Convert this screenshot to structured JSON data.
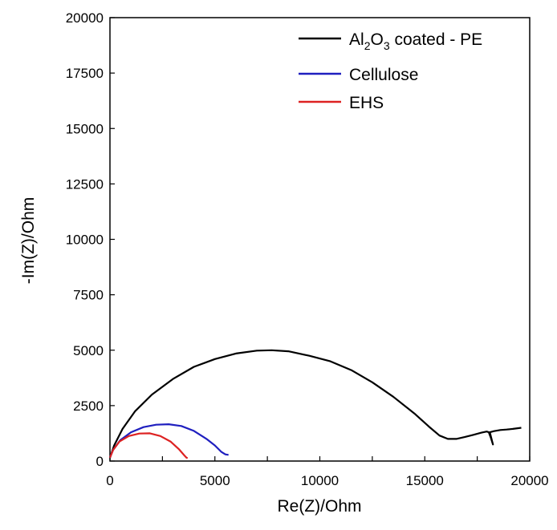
{
  "chart_data": {
    "type": "line",
    "xlabel": "Re(Z)/Ohm",
    "ylabel": "-Im(Z)/Ohm",
    "xlim": [
      0,
      20000
    ],
    "ylim": [
      0,
      20000
    ],
    "xticks": [
      0,
      2500,
      5000,
      7500,
      10000,
      12500,
      15000,
      17500,
      20000
    ],
    "xtick_labels": [
      "0",
      "5000",
      "10000",
      "15000",
      "20000"
    ],
    "xtick_label_values": [
      0,
      5000,
      10000,
      15000,
      20000
    ],
    "yticks": [
      0,
      2500,
      5000,
      7500,
      10000,
      12500,
      15000,
      17500,
      20000
    ],
    "ytick_labels": [
      "0",
      "2500",
      "5000",
      "7500",
      "10000",
      "12500",
      "15000",
      "17500",
      "20000"
    ],
    "grid": false,
    "legend_position": "top-right",
    "series": [
      {
        "name_parts": [
          "Al",
          "2",
          "O",
          "3",
          " coated - PE"
        ],
        "color": "#000000",
        "x": [
          0,
          200,
          600,
          1200,
          2000,
          3000,
          4000,
          5000,
          6000,
          7000,
          7700,
          8500,
          9500,
          10500,
          11500,
          12500,
          13500,
          14500,
          15200,
          15700,
          16100,
          16500,
          16900,
          17300,
          17700,
          17950,
          18050,
          18150,
          18250,
          18100,
          18300,
          18600,
          18900,
          19200,
          19600
        ],
        "y": [
          150,
          700,
          1450,
          2250,
          3000,
          3700,
          4250,
          4600,
          4850,
          4980,
          5000,
          4950,
          4750,
          4500,
          4100,
          3550,
          2900,
          2150,
          1550,
          1150,
          1000,
          1000,
          1080,
          1180,
          1280,
          1330,
          1300,
          1050,
          750,
          1300,
          1350,
          1400,
          1420,
          1450,
          1500
        ]
      },
      {
        "name": "Cellulose",
        "color": "#1f1fbf",
        "x": [
          0,
          150,
          500,
          1000,
          1600,
          2200,
          2800,
          3400,
          4000,
          4600,
          5000,
          5300,
          5500,
          5650
        ],
        "y": [
          150,
          500,
          950,
          1300,
          1530,
          1640,
          1660,
          1580,
          1360,
          1000,
          700,
          420,
          300,
          280
        ]
      },
      {
        "name": "EHS",
        "color": "#dd2222",
        "x": [
          0,
          150,
          450,
          900,
          1400,
          1900,
          2400,
          2900,
          3300,
          3550,
          3650,
          3700
        ],
        "y": [
          150,
          500,
          880,
          1130,
          1240,
          1250,
          1130,
          870,
          520,
          250,
          150,
          130
        ]
      }
    ]
  }
}
